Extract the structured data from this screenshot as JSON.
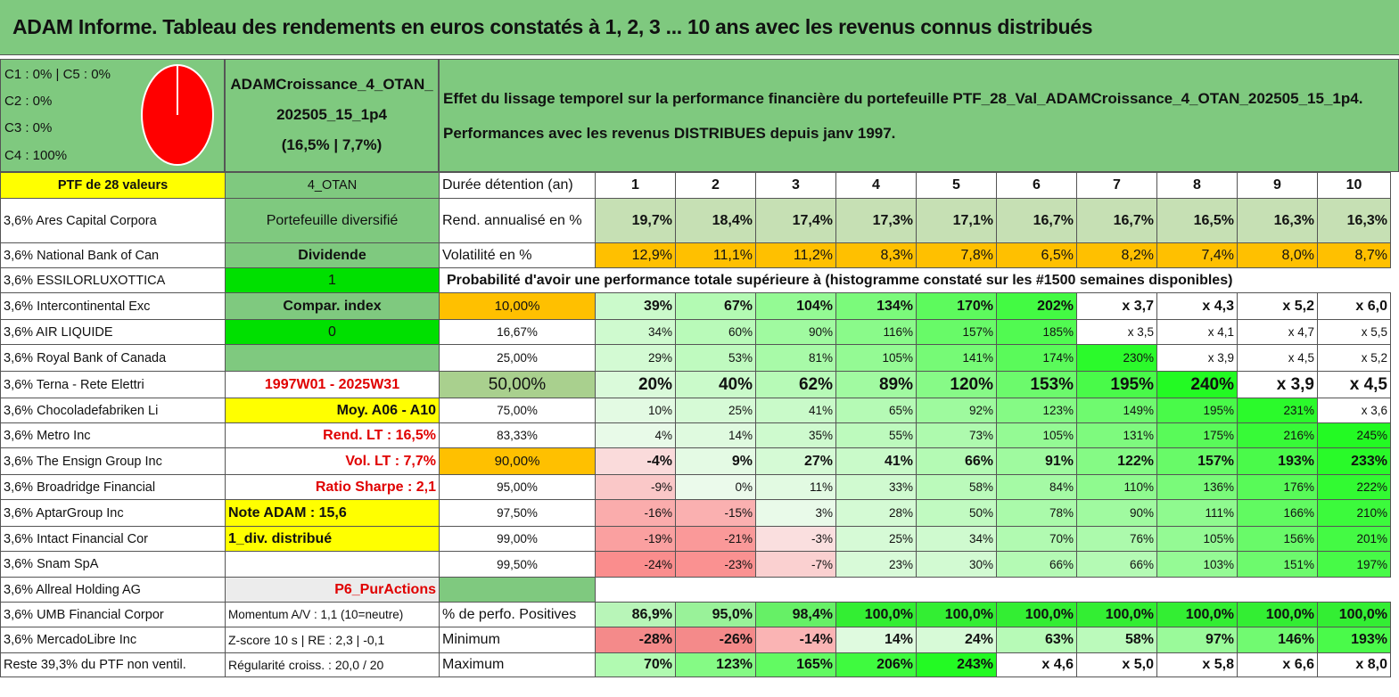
{
  "title": "ADAM Informe. Tableau des rendements en euros constatés à 1, 2, 3 ... 10 ans avec les revenus connus distribués",
  "classes": [
    "C1 : 0% | C5 : 0%",
    "C2 : 0%",
    "C3 : 0%",
    "C4 : 100%"
  ],
  "pie_color": "#ff0000",
  "portfolio": {
    "line1": "ADAMCroissance_4_OTAN_",
    "line2": "202505_15_1p4",
    "line3": "(16,5% | 7,7%)"
  },
  "effect": {
    "line1": "Effet du lissage temporel sur la performance financière du portefeuille PTF_28_Val_ADAMCroissance_4_OTAN_202505_15_1p4.",
    "line2": "Performances avec les revenus DISTRIBUES depuis janv 1997."
  },
  "ptf_label": "PTF de 28 valeurs",
  "otan_label": "4_OTAN",
  "duree_label": "Durée détention (an)",
  "years": [
    "1",
    "2",
    "3",
    "4",
    "5",
    "6",
    "7",
    "8",
    "9",
    "10"
  ],
  "rend_label": "Rend. annualisé en %",
  "rend": [
    "19,7%",
    "18,4%",
    "17,4%",
    "17,3%",
    "17,1%",
    "16,7%",
    "16,7%",
    "16,5%",
    "16,3%",
    "16,3%"
  ],
  "vol_label": "Volatilité en %",
  "vol": [
    "12,9%",
    "11,1%",
    "11,2%",
    "8,3%",
    "7,8%",
    "6,5%",
    "8,2%",
    "7,4%",
    "8,0%",
    "8,7%"
  ],
  "prob_title": "Probabilité d'avoir une performance totale supérieure à (histogramme constaté sur les #1500 semaines disponibles)",
  "holdings": [
    "3,6% Ares Capital Corpora",
    "3,6% National Bank of Can",
    "3,6% ESSILORLUXOTTICA",
    "3,6% Intercontinental Exc",
    "3,6% AIR LIQUIDE",
    "3,6% Royal Bank of Canada",
    "3,6% Terna - Rete Elettri",
    "3,6% Chocoladefabriken Li",
    "3,6% Metro Inc",
    "3,6% The Ensign Group Inc",
    "3,6% Broadridge Financial",
    "3,6% AptarGroup Inc",
    "3,6% Intact Financial Cor",
    "3,6% Snam SpA",
    "3,6% Allreal Holding AG",
    "3,6% UMB Financial Corpor",
    "3,6% MercadoLibre Inc",
    "Reste 39,3% du PTF non ventil."
  ],
  "mid": [
    "Portefeuille diversifié",
    "Dividende",
    "1",
    "Compar. index",
    "0",
    "",
    "1997W01 - 2025W31",
    "Moy. A06 - A10",
    "Rend. LT : 16,5%",
    "Vol. LT : 7,7%",
    "Ratio Sharpe : 2,1",
    "Note ADAM : 15,6",
    "1_div. distribué",
    "",
    "P6_PurActions",
    "Momentum A/V : 1,1 (10=neutre)",
    "Z-score 10 s | RE : 2,3 | -0,1",
    "Régularité croiss. : 20,0 / 20"
  ],
  "prob_rows": [
    {
      "p": "10,00%",
      "v": [
        "39%",
        "67%",
        "104%",
        "134%",
        "170%",
        "202%",
        "x 3,7",
        "x 4,3",
        "x 5,2",
        "x 6,0"
      ]
    },
    {
      "p": "16,67%",
      "v": [
        "34%",
        "60%",
        "90%",
        "116%",
        "157%",
        "185%",
        "x 3,5",
        "x 4,1",
        "x 4,7",
        "x 5,5"
      ]
    },
    {
      "p": "25,00%",
      "v": [
        "29%",
        "53%",
        "81%",
        "105%",
        "141%",
        "174%",
        "230%",
        "x 3,9",
        "x 4,5",
        "x 5,2"
      ]
    },
    {
      "p": "50,00%",
      "v": [
        "20%",
        "40%",
        "62%",
        "89%",
        "120%",
        "153%",
        "195%",
        "240%",
        "x 3,9",
        "x 4,5"
      ]
    },
    {
      "p": "75,00%",
      "v": [
        "10%",
        "25%",
        "41%",
        "65%",
        "92%",
        "123%",
        "149%",
        "195%",
        "231%",
        "x 3,6"
      ]
    },
    {
      "p": "83,33%",
      "v": [
        "4%",
        "14%",
        "35%",
        "55%",
        "73%",
        "105%",
        "131%",
        "175%",
        "216%",
        "245%"
      ]
    },
    {
      "p": "90,00%",
      "v": [
        "-4%",
        "9%",
        "27%",
        "41%",
        "66%",
        "91%",
        "122%",
        "157%",
        "193%",
        "233%"
      ]
    },
    {
      "p": "95,00%",
      "v": [
        "-9%",
        "0%",
        "11%",
        "33%",
        "58%",
        "84%",
        "110%",
        "136%",
        "176%",
        "222%"
      ]
    },
    {
      "p": "97,50%",
      "v": [
        "-16%",
        "-15%",
        "3%",
        "28%",
        "50%",
        "78%",
        "90%",
        "111%",
        "166%",
        "210%"
      ]
    },
    {
      "p": "99,00%",
      "v": [
        "-19%",
        "-21%",
        "-3%",
        "25%",
        "34%",
        "70%",
        "76%",
        "105%",
        "156%",
        "201%"
      ]
    },
    {
      "p": "99,50%",
      "v": [
        "-24%",
        "-23%",
        "-7%",
        "23%",
        "30%",
        "66%",
        "66%",
        "103%",
        "151%",
        "197%"
      ]
    }
  ],
  "pos_label": "% de perfo. Positives",
  "pos": [
    "86,9%",
    "95,0%",
    "98,4%",
    "100,0%",
    "100,0%",
    "100,0%",
    "100,0%",
    "100,0%",
    "100,0%",
    "100,0%"
  ],
  "min_label": "Minimum",
  "min": [
    "-28%",
    "-26%",
    "-14%",
    "14%",
    "24%",
    "63%",
    "58%",
    "97%",
    "146%",
    "193%"
  ],
  "max_label": "Maximum",
  "max": [
    "70%",
    "123%",
    "165%",
    "206%",
    "243%",
    "x 4,6",
    "x 5,0",
    "x 5,8",
    "x 6,6",
    "x 8,0"
  ]
}
